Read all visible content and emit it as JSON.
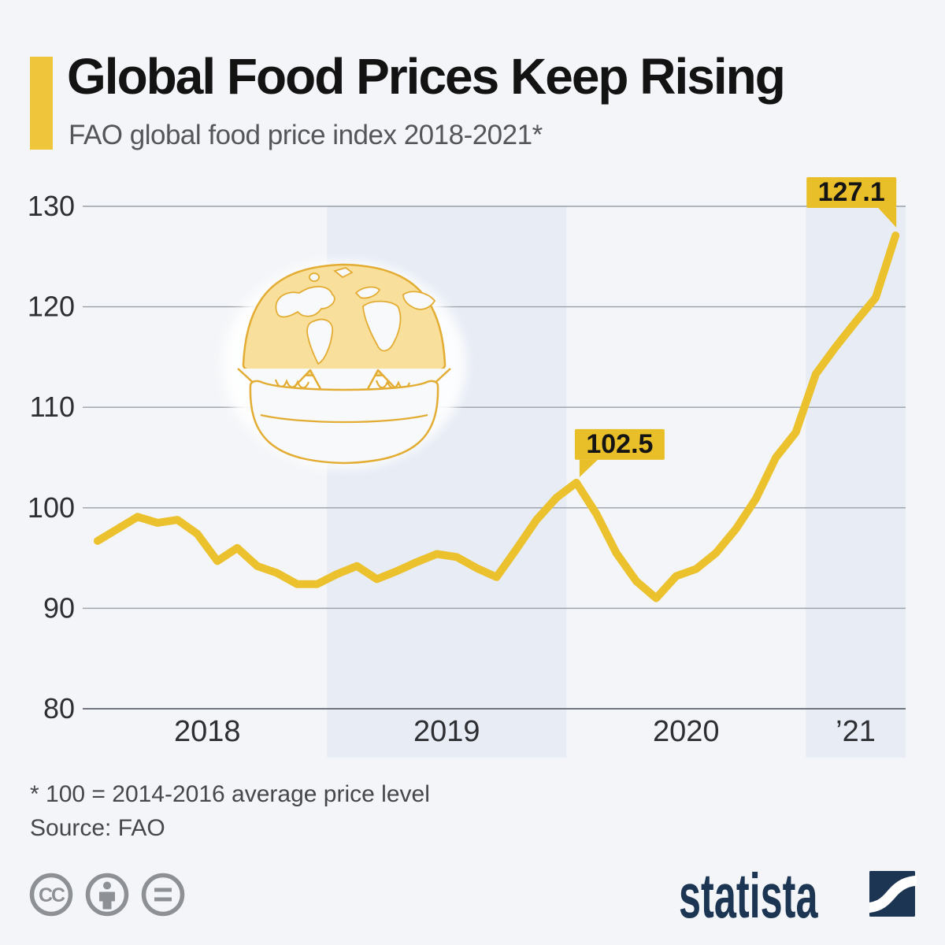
{
  "header": {
    "title": "Global Food Prices Keep Rising",
    "subtitle": "FAO global food price index 2018-2021*"
  },
  "chart_data": {
    "type": "line",
    "title": "FAO global food price index 2018-2021",
    "x": [
      "2018-01",
      "2018-02",
      "2018-03",
      "2018-04",
      "2018-05",
      "2018-06",
      "2018-07",
      "2018-08",
      "2018-09",
      "2018-10",
      "2018-11",
      "2018-12",
      "2019-01",
      "2019-02",
      "2019-03",
      "2019-04",
      "2019-05",
      "2019-06",
      "2019-07",
      "2019-08",
      "2019-09",
      "2019-10",
      "2019-11",
      "2019-12",
      "2020-01",
      "2020-02",
      "2020-03",
      "2020-04",
      "2020-05",
      "2020-06",
      "2020-07",
      "2020-08",
      "2020-09",
      "2020-10",
      "2020-11",
      "2020-12",
      "2021-01",
      "2021-02",
      "2021-03",
      "2021-04",
      "2021-05"
    ],
    "series": [
      {
        "name": "FAO global food price index (100 = 2014-2016 average)",
        "values": [
          96.7,
          97.9,
          99.1,
          98.5,
          98.8,
          97.4,
          94.7,
          96.0,
          94.2,
          93.5,
          92.4,
          92.4,
          93.4,
          94.2,
          92.9,
          93.7,
          94.6,
          95.4,
          95.1,
          94.0,
          93.1,
          95.9,
          98.8,
          101.0,
          102.5,
          99.4,
          95.5,
          92.7,
          91.0,
          93.2,
          93.9,
          95.5,
          97.9,
          100.9,
          105.0,
          107.5,
          113.3,
          116.0,
          118.5,
          120.9,
          127.1
        ]
      }
    ],
    "ylim": [
      80,
      130
    ],
    "yticks": [
      130,
      120,
      110,
      100,
      90,
      80
    ],
    "xticks": [
      {
        "label": "2018",
        "months": [
          0,
          11
        ]
      },
      {
        "label": "2019",
        "months": [
          12,
          23
        ]
      },
      {
        "label": "2020",
        "months": [
          24,
          35
        ]
      },
      {
        "label": "’21",
        "months": [
          36,
          40
        ]
      }
    ],
    "year_bands": [
      {
        "label": "2019",
        "months": [
          12,
          23
        ]
      },
      {
        "label": "2021",
        "months": [
          36,
          40
        ]
      }
    ],
    "annotations": [
      {
        "label": "102.5",
        "index": 24,
        "side": "left"
      },
      {
        "label": "127.1",
        "index": 40,
        "side": "right"
      }
    ],
    "grid": true,
    "legend": "none",
    "colors": {
      "line": "#ebc22d",
      "callout_bg": "#e9bf29",
      "band": "#e7ecf5"
    }
  },
  "footer": {
    "footnote": "* 100 = 2014-2016 average price level",
    "source": "Source: FAO"
  },
  "branding": {
    "logo_text": "statista",
    "license_icons": [
      "cc",
      "by",
      "nd"
    ]
  }
}
